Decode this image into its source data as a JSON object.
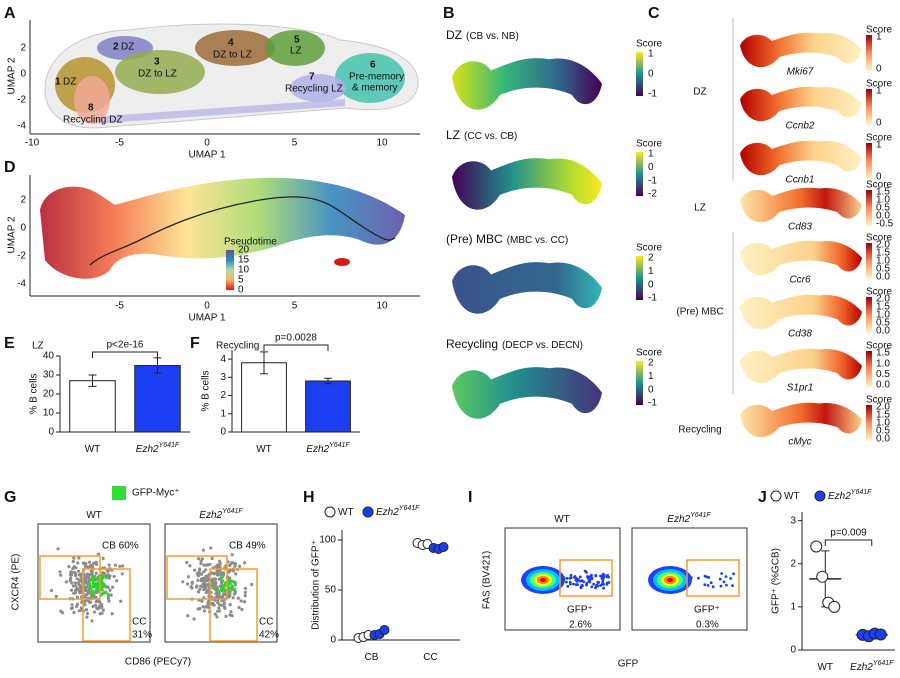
{
  "figure": {
    "panels": {
      "A": {
        "letter": "A",
        "x_label": "UMAP 1",
        "y_label": "UMAP 2",
        "xticks": [
          -10,
          -5,
          0,
          5,
          10
        ],
        "yticks": [
          2,
          0,
          -2,
          -4
        ],
        "clusters": [
          {
            "number": "1",
            "label": [
              "DZ"
            ]
          },
          {
            "number": "2",
            "label": [
              "DZ"
            ]
          },
          {
            "number": "3",
            "label": [
              "DZ to LZ"
            ]
          },
          {
            "number": "4",
            "label": [
              "DZ to LZ"
            ]
          },
          {
            "number": "5",
            "label": [
              "LZ"
            ]
          },
          {
            "number": "6",
            "label": [
              "Pre-memory",
              "& memory"
            ]
          },
          {
            "number": "7",
            "label": [
              "Recycling LZ"
            ]
          },
          {
            "number": "8",
            "label": [
              "Recycling DZ"
            ]
          }
        ]
      },
      "B": {
        "letter": "B",
        "maps": [
          {
            "title": "DZ",
            "subtitle": "(CB vs. NB)",
            "scale_title": "Score",
            "scale_ticks": [
              "1",
              "0",
              "-1"
            ]
          },
          {
            "title": "LZ",
            "subtitle": "(CC vs. CB)",
            "scale_title": "Score",
            "scale_ticks": [
              "1",
              "0",
              "-1",
              "-2"
            ]
          },
          {
            "title": "(Pre) MBC",
            "subtitle": "(MBC vs. CC)",
            "scale_title": "Score",
            "scale_ticks": [
              "2",
              "1",
              "0",
              "-1"
            ]
          },
          {
            "title": "Recycling",
            "subtitle": "(DECP vs. DECN)",
            "scale_title": "Score",
            "scale_ticks": [
              "2",
              "1",
              "0",
              "-1"
            ]
          }
        ]
      },
      "C": {
        "letter": "C",
        "groups": [
          {
            "label": "DZ",
            "genes": [
              {
                "gene": "Mki67",
                "scale_title": "Score",
                "scale_ticks": [
                  "1",
                  "0"
                ]
              },
              {
                "gene": "Ccnb2",
                "scale_title": "Score",
                "scale_ticks": [
                  "1",
                  "0"
                ]
              },
              {
                "gene": "Ccnb1",
                "scale_title": "Score",
                "scale_ticks": [
                  "1",
                  "0"
                ]
              }
            ]
          },
          {
            "label": "LZ",
            "genes": [
              {
                "gene": "Cd83",
                "scale_title": "Score",
                "scale_ticks": [
                  "1.5",
                  "1.0",
                  "0.5",
                  "0.0",
                  "-0.5"
                ]
              }
            ]
          },
          {
            "label": "(Pre) MBC",
            "genes": [
              {
                "gene": "Ccr6",
                "scale_title": "Score",
                "scale_ticks": [
                  "2.0",
                  "1.5",
                  "1.0",
                  "0.5",
                  "0.0"
                ]
              },
              {
                "gene": "Cd38",
                "scale_title": "Score",
                "scale_ticks": [
                  "2.0",
                  "1.5",
                  "1.0",
                  "0.5",
                  "0.0"
                ]
              },
              {
                "gene": "S1pr1",
                "scale_title": "Score",
                "scale_ticks": [
                  "1.5",
                  "1.0",
                  "0.5",
                  "0.0"
                ]
              }
            ]
          },
          {
            "label": "Recycling",
            "genes": [
              {
                "gene": "cMyc",
                "scale_title": "Score",
                "scale_ticks": [
                  "2.0",
                  "1.5",
                  "1.0",
                  "0.5",
                  "0.0"
                ]
              }
            ]
          }
        ]
      },
      "D": {
        "letter": "D",
        "x_label": "UMAP 1",
        "y_label": "UMAP 2",
        "xticks": [
          -5,
          0,
          5,
          10
        ],
        "yticks": [
          2,
          0,
          -2,
          -4
        ],
        "legend_title": "Pseudotime",
        "legend_ticks": [
          20,
          15,
          10,
          5,
          0
        ]
      },
      "G": {
        "letter": "G",
        "legend": "GFP-Myc⁺",
        "y_label": "CXCR4 (PE)",
        "x_label": "CD86 (PECy7)",
        "plots": [
          {
            "title": {
              "name": "WT"
            },
            "cb": "CB 60%",
            "cc": [
              "CC",
              "31%"
            ]
          },
          {
            "title": {
              "name": "Ezh2",
              "sup": "Y641F"
            },
            "cb": "CB 49%",
            "cc": [
              "CC",
              "42%"
            ]
          }
        ]
      },
      "I": {
        "letter": "I",
        "y_label": "FAS (BV421)",
        "x_label": "GFP",
        "plots": [
          {
            "title": {
              "name": "WT"
            },
            "gate": [
              "GFP⁺",
              "2.6%"
            ]
          },
          {
            "title": {
              "name": "Ezh2",
              "sup": "Y641F"
            },
            "gate": [
              "GFP⁺",
              "0.3%"
            ]
          }
        ]
      }
    }
  },
  "chart_data": [
    {
      "type": "bar",
      "panel": "E",
      "title": "LZ",
      "categories": [
        "WT",
        "Ezh2"
      ],
      "category_sup": [
        null,
        "Y641F"
      ],
      "values": [
        27,
        35
      ],
      "errors": [
        3,
        4
      ],
      "colors": [
        "#ffffff",
        "#1b3ff0"
      ],
      "y_label": "% B cells",
      "ylim": [
        0,
        40
      ],
      "yticks": [
        0,
        10,
        20,
        30,
        40
      ],
      "annotation": "p<2e-16"
    },
    {
      "type": "bar",
      "panel": "F",
      "title": "Recycling",
      "categories": [
        "WT",
        "Ezh2"
      ],
      "category_sup": [
        null,
        "Y641F"
      ],
      "values": [
        3.8,
        2.8
      ],
      "errors": [
        0.6,
        0.15
      ],
      "colors": [
        "#ffffff",
        "#1b3ff0"
      ],
      "y_label": "% B cells",
      "ylim": [
        0,
        4.5
      ],
      "yticks": [
        0,
        1,
        2,
        3,
        4
      ],
      "annotation": "p=0.0028"
    },
    {
      "type": "dot",
      "panel": "H",
      "categories": [
        "CB",
        "CC"
      ],
      "series": [
        {
          "name": "WT",
          "color": "#ffffff",
          "values": [
            [
              2,
              3,
              5
            ],
            [
              97,
              95,
              96
            ]
          ]
        },
        {
          "name": "Ezh2",
          "name_sup": "Y641F",
          "color": "#1b3ff0",
          "values": [
            [
              5,
              6,
              10
            ],
            [
              92,
              91,
              93
            ]
          ]
        }
      ],
      "y_label": "Distribution of GFP⁺",
      "ylim": [
        0,
        110
      ],
      "yticks": [
        0,
        50,
        100
      ]
    },
    {
      "type": "strip",
      "panel": "J",
      "categories": [
        "WT",
        "Ezh2"
      ],
      "category_sup": [
        null,
        "Y641F"
      ],
      "series": [
        {
          "name": "WT",
          "color": "#ffffff",
          "values": [
            2.4,
            1.7,
            1.1,
            1.0
          ],
          "mean": 1.65,
          "error": 0.65
        },
        {
          "name": "Ezh2",
          "name_sup": "Y641F",
          "color": "#1b3ff0",
          "values": [
            0.35,
            0.32,
            0.38,
            0.36
          ],
          "mean": 0.35,
          "error": 0.04
        }
      ],
      "y_label": "GFP⁺ (%GCB)",
      "ylim": [
        0,
        3.2
      ],
      "yticks": [
        0,
        1,
        2,
        3
      ],
      "annotation": "p=0.009"
    }
  ]
}
